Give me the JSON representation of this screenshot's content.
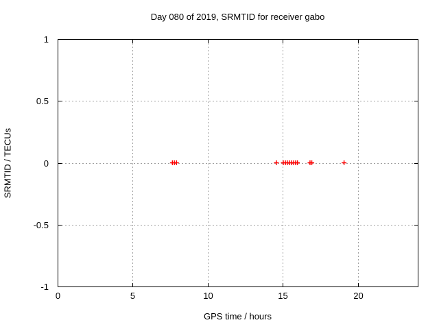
{
  "figure": {
    "background": "#ffffff",
    "border_color": "#000000",
    "text_color": "#000000"
  },
  "chart_data": {
    "type": "scatter",
    "title": "Day 080 of 2019, SRMTID for receiver gabo",
    "xlabel": "GPS time / hours",
    "ylabel": "SRMTID / TECUs",
    "xlim": [
      0,
      24
    ],
    "ylim": [
      -1,
      1
    ],
    "xtick_values": [
      0,
      5,
      10,
      15,
      20
    ],
    "xtick_labels": [
      "0",
      "5",
      "10",
      "15",
      "20"
    ],
    "ytick_values": [
      -1,
      -0.5,
      0,
      0.5,
      1
    ],
    "ytick_labels": [
      "-1",
      "-0.5",
      "0",
      "0.5",
      "1"
    ],
    "grid": true,
    "grid_color": "#a0a0a0",
    "legend": "none",
    "marker": "plus",
    "marker_color": "#ff0000",
    "marker_size": 7,
    "series": [
      {
        "name": "SRMTID",
        "points": [
          {
            "x": 7.65,
            "y": 0.0
          },
          {
            "x": 7.78,
            "y": 0.0
          },
          {
            "x": 7.92,
            "y": 0.0
          },
          {
            "x": 14.58,
            "y": 0.0
          },
          {
            "x": 15.04,
            "y": 0.0
          },
          {
            "x": 15.18,
            "y": 0.0
          },
          {
            "x": 15.31,
            "y": 0.0
          },
          {
            "x": 15.45,
            "y": 0.0
          },
          {
            "x": 15.59,
            "y": 0.0
          },
          {
            "x": 15.73,
            "y": 0.0
          },
          {
            "x": 15.86,
            "y": 0.0
          },
          {
            "x": 15.98,
            "y": 0.0
          },
          {
            "x": 16.82,
            "y": 0.0
          },
          {
            "x": 16.94,
            "y": 0.0
          },
          {
            "x": 19.09,
            "y": 0.0
          }
        ]
      }
    ]
  }
}
